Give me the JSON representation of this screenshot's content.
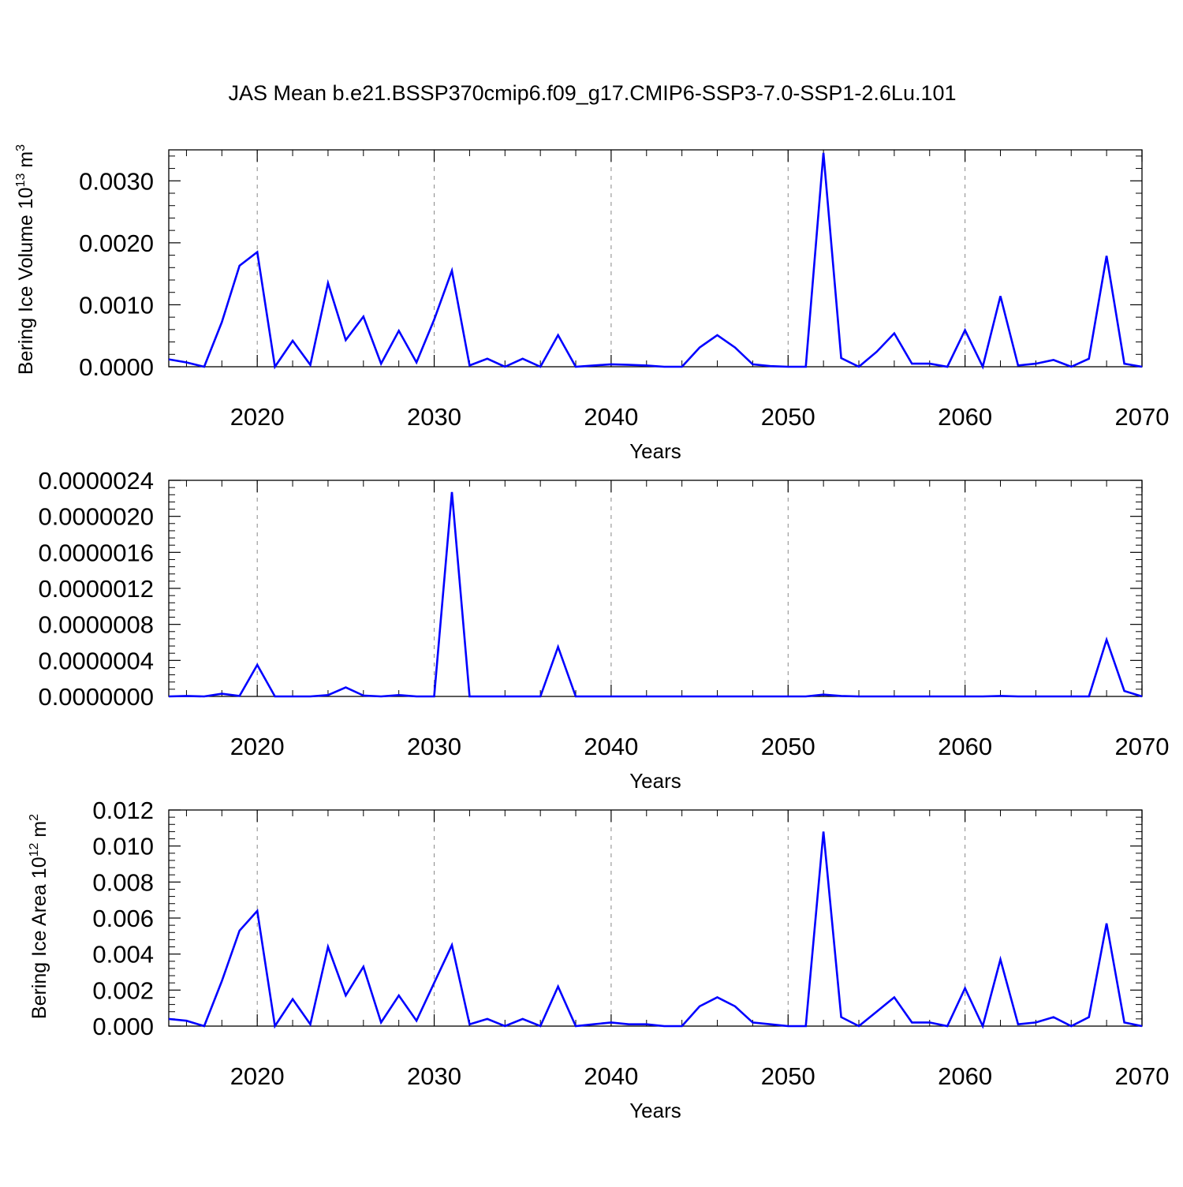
{
  "title": "JAS Mean b.e21.BSSP370cmip6.f09_g17.CMIP6-SSP3-7.0-SSP1-2.6Lu.101",
  "colors": {
    "line": "#0000ff",
    "axis": "#000000",
    "grid": "#888888"
  },
  "chart_data": [
    {
      "type": "line",
      "xlabel": "Years",
      "ylabel": {
        "main": "Bering Ice Volume 10",
        "sup": "13",
        "tail": " m",
        "sup2": "3"
      },
      "xlim": [
        2015,
        2070
      ],
      "ylim": [
        0,
        0.0035
      ],
      "xticks": [
        2020,
        2030,
        2040,
        2050,
        2060,
        2070
      ],
      "xtick_labels": [
        "2020",
        "2030",
        "2040",
        "2050",
        "2060",
        "2070"
      ],
      "yticks": [
        0,
        0.001,
        0.002,
        0.003
      ],
      "ytick_labels": [
        "0.0000",
        "0.0010",
        "0.0020",
        "0.0030"
      ],
      "grid": "vertical dashed at major x ticks",
      "series": [
        {
          "x": [
            2015,
            2016,
            2017,
            2018,
            2019,
            2020,
            2021,
            2022,
            2023,
            2024,
            2025,
            2026,
            2027,
            2028,
            2029,
            2030,
            2031,
            2032,
            2033,
            2034,
            2035,
            2036,
            2037,
            2038,
            2039,
            2040,
            2041,
            2042,
            2043,
            2044,
            2045,
            2046,
            2047,
            2048,
            2049,
            2050,
            2051,
            2052,
            2053,
            2054,
            2055,
            2056,
            2057,
            2058,
            2059,
            2060,
            2061,
            2062,
            2063,
            2064,
            2065,
            2066,
            2067,
            2068,
            2069,
            2070
          ],
          "y": [
            0.00012,
            7e-05,
            0.0,
            0.00072,
            0.00163,
            0.00185,
            0.0,
            0.00042,
            3e-05,
            0.00135,
            0.00043,
            0.00081,
            5e-05,
            0.00058,
            7e-05,
            0.00076,
            0.00155,
            2e-05,
            0.00013,
            0.0,
            0.00013,
            0.0,
            0.00051,
            0.0,
            2e-05,
            4e-05,
            3e-05,
            2e-05,
            0.0,
            0.0,
            0.00031,
            0.00051,
            0.00031,
            4e-05,
            1e-05,
            0.0,
            0.0,
            0.00345,
            0.00014,
            0.0,
            0.00024,
            0.00054,
            5e-05,
            5e-05,
            0.0,
            0.00059,
            0.0,
            0.00114,
            2e-05,
            5e-05,
            0.00011,
            0.0,
            0.00013,
            0.00179,
            5e-05,
            0.0
          ]
        }
      ]
    },
    {
      "type": "line",
      "xlabel": "Years",
      "ylabel": null,
      "xlim": [
        2015,
        2070
      ],
      "ylim": [
        0,
        2.4e-06
      ],
      "xticks": [
        2020,
        2030,
        2040,
        2050,
        2060,
        2070
      ],
      "xtick_labels": [
        "2020",
        "2030",
        "2040",
        "2050",
        "2060",
        "2070"
      ],
      "yticks": [
        0,
        4e-07,
        8e-07,
        1.2e-06,
        1.6e-06,
        2e-06,
        2.4e-06
      ],
      "ytick_labels": [
        "0.0000000",
        "0.0000004",
        "0.0000008",
        "0.0000012",
        "0.0000016",
        "0.0000020",
        "0.0000024"
      ],
      "grid": "vertical dashed at major x ticks",
      "series": [
        {
          "x": [
            2015,
            2016,
            2017,
            2018,
            2019,
            2020,
            2021,
            2022,
            2023,
            2024,
            2025,
            2026,
            2027,
            2028,
            2029,
            2030,
            2031,
            2032,
            2033,
            2034,
            2035,
            2036,
            2037,
            2038,
            2039,
            2040,
            2041,
            2042,
            2043,
            2044,
            2045,
            2046,
            2047,
            2048,
            2049,
            2050,
            2051,
            2052,
            2053,
            2054,
            2055,
            2056,
            2057,
            2058,
            2059,
            2060,
            2061,
            2062,
            2063,
            2064,
            2065,
            2066,
            2067,
            2068,
            2069,
            2070
          ],
          "y": [
            0.0,
            5e-09,
            0.0,
            3e-08,
            5e-09,
            3.5e-07,
            0.0,
            0.0,
            0.0,
            1.5e-08,
            1e-07,
            1e-08,
            0.0,
            1.5e-08,
            0.0,
            0.0,
            2.27e-06,
            0.0,
            0.0,
            0.0,
            0.0,
            0.0,
            5.5e-07,
            0.0,
            0.0,
            0.0,
            0.0,
            0.0,
            0.0,
            0.0,
            0.0,
            0.0,
            0.0,
            0.0,
            0.0,
            0.0,
            0.0,
            2e-08,
            5e-09,
            0.0,
            0.0,
            0.0,
            0.0,
            0.0,
            0.0,
            0.0,
            0.0,
            5e-09,
            0.0,
            0.0,
            0.0,
            0.0,
            0.0,
            6.3e-07,
            6e-08,
            0.0
          ]
        }
      ]
    },
    {
      "type": "line",
      "xlabel": "Years",
      "ylabel": {
        "main": "Bering Ice Area 10",
        "sup": "12",
        "tail": " m",
        "sup2": "2"
      },
      "xlim": [
        2015,
        2070
      ],
      "ylim": [
        0,
        0.012
      ],
      "xticks": [
        2020,
        2030,
        2040,
        2050,
        2060,
        2070
      ],
      "xtick_labels": [
        "2020",
        "2030",
        "2040",
        "2050",
        "2060",
        "2070"
      ],
      "yticks": [
        0,
        0.002,
        0.004,
        0.006,
        0.008,
        0.01,
        0.012
      ],
      "ytick_labels": [
        "0.000",
        "0.002",
        "0.004",
        "0.006",
        "0.008",
        "0.010",
        "0.012"
      ],
      "grid": "vertical dashed at major x ticks",
      "series": [
        {
          "x": [
            2015,
            2016,
            2017,
            2018,
            2019,
            2020,
            2021,
            2022,
            2023,
            2024,
            2025,
            2026,
            2027,
            2028,
            2029,
            2030,
            2031,
            2032,
            2033,
            2034,
            2035,
            2036,
            2037,
            2038,
            2039,
            2040,
            2041,
            2042,
            2043,
            2044,
            2045,
            2046,
            2047,
            2048,
            2049,
            2050,
            2051,
            2052,
            2053,
            2054,
            2055,
            2056,
            2057,
            2058,
            2059,
            2060,
            2061,
            2062,
            2063,
            2064,
            2065,
            2066,
            2067,
            2068,
            2069,
            2070
          ],
          "y": [
            0.0004,
            0.0003,
            0.0,
            0.0025,
            0.0053,
            0.0064,
            0.0,
            0.0015,
            0.0001,
            0.0044,
            0.0017,
            0.0033,
            0.0002,
            0.0017,
            0.0003,
            0.0024,
            0.0045,
            0.0001,
            0.0004,
            0.0,
            0.0004,
            0.0,
            0.0022,
            0.0,
            0.0001,
            0.0002,
            0.0001,
            0.0001,
            0.0,
            0.0,
            0.0011,
            0.0016,
            0.0011,
            0.0002,
            0.0001,
            0.0,
            0.0,
            0.0108,
            0.0005,
            0.0,
            0.0008,
            0.0016,
            0.0002,
            0.0002,
            0.0,
            0.0021,
            0.0,
            0.0037,
            0.0001,
            0.0002,
            0.0005,
            0.0,
            0.0005,
            0.0057,
            0.0002,
            0.0
          ]
        }
      ]
    }
  ]
}
